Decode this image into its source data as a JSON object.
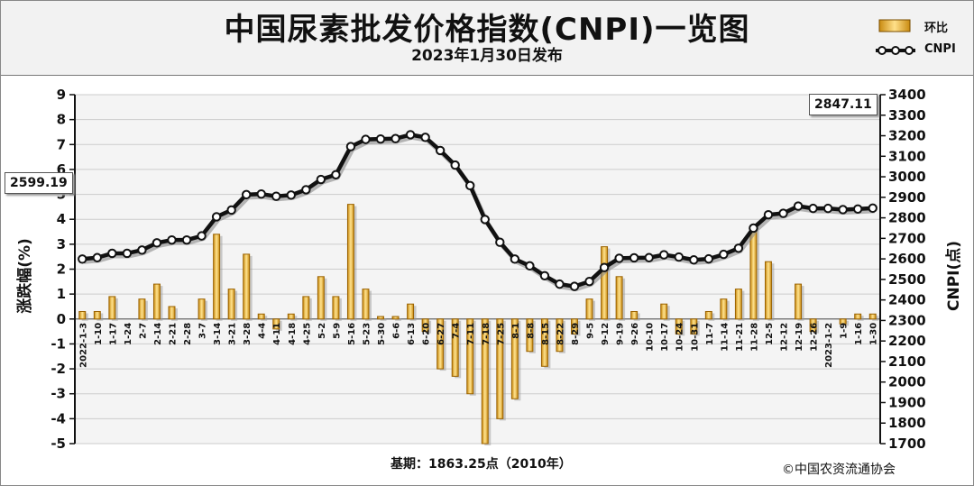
{
  "header": {
    "title": "中国尿素批发价格指数(CNPI)一览图",
    "subtitle": "2023年1月30日发布"
  },
  "footer": {
    "base": "基期：1863.25点（2010年）",
    "copyright": "©中国农资流通协会"
  },
  "colors": {
    "bar_fill": "#f5c242",
    "bar_edge": "#9a6200",
    "line": "#111111",
    "marker_fill": "#ffffff",
    "plot_bg": "#f4f4f4",
    "grid": "#cccccc"
  },
  "chart_data": {
    "type": "bar+line",
    "legend": {
      "position": "top-right",
      "bar_label": "环比",
      "line_label": "CNPI"
    },
    "left_axis": {
      "label": "涨跌幅(%)",
      "min": -5,
      "max": 9,
      "ticks": [
        -5,
        -4,
        -3,
        -2,
        -1,
        0,
        1,
        2,
        3,
        4,
        5,
        6,
        7,
        8,
        9
      ]
    },
    "right_axis": {
      "label": "CNPI(点)",
      "min": 1700,
      "max": 3400,
      "ticks": [
        1700,
        1800,
        1900,
        2000,
        2100,
        2200,
        2300,
        2400,
        2500,
        2600,
        2700,
        2800,
        2900,
        3000,
        3100,
        3200,
        3300,
        3400
      ]
    },
    "categories": [
      "2022-1-3",
      "1-10",
      "1-17",
      "1-24",
      "2-7",
      "2-14",
      "2-21",
      "2-28",
      "3-7",
      "3-14",
      "3-21",
      "3-28",
      "4-4",
      "4-11",
      "4-18",
      "4-25",
      "5-2",
      "5-9",
      "5-16",
      "5-23",
      "5-30",
      "6-6",
      "6-13",
      "6-20",
      "6-27",
      "7-4",
      "7-11",
      "7-18",
      "7-25",
      "8-1",
      "8-8",
      "8-15",
      "8-22",
      "8-29",
      "9-5",
      "9-12",
      "9-19",
      "9-26",
      "10-10",
      "10-17",
      "10-24",
      "10-31",
      "11-7",
      "11-14",
      "11-21",
      "11-28",
      "12-5",
      "12-12",
      "12-19",
      "12-26",
      "2023-1-2",
      "1-9",
      "1-16",
      "1-30"
    ],
    "series": [
      {
        "name": "环比",
        "type": "bar",
        "values": [
          0.3,
          0.3,
          0.9,
          0.0,
          0.8,
          1.4,
          0.5,
          0.0,
          0.8,
          3.4,
          1.2,
          2.6,
          0.2,
          -0.4,
          0.2,
          0.9,
          1.7,
          0.9,
          4.6,
          1.2,
          0.1,
          0.1,
          0.6,
          -0.5,
          -2.0,
          -2.3,
          -3.0,
          -5.0,
          -4.0,
          -3.2,
          -1.3,
          -1.9,
          -1.3,
          -0.6,
          0.8,
          2.9,
          1.7,
          0.3,
          0.0,
          0.6,
          -0.6,
          -0.6,
          0.3,
          0.8,
          1.2,
          3.6,
          2.3,
          0.0,
          1.4,
          -0.5,
          0.0,
          -0.2,
          0.2,
          0.2
        ]
      },
      {
        "name": "CNPI",
        "type": "line",
        "values": [
          2599.19,
          2606,
          2627,
          2627,
          2643,
          2678,
          2692,
          2692,
          2712,
          2805,
          2838,
          2913,
          2916,
          2905,
          2911,
          2937,
          2987,
          3010,
          3147,
          3182,
          3184,
          3186,
          3205,
          3192,
          3128,
          3057,
          2957,
          2792,
          2681,
          2599,
          2566,
          2518,
          2477,
          2466,
          2490,
          2558,
          2603,
          2605,
          2606,
          2620,
          2609,
          2595,
          2600,
          2622,
          2652,
          2750,
          2815,
          2822,
          2857,
          2846,
          2846,
          2840,
          2843,
          2847.11
        ]
      }
    ],
    "callouts": {
      "first": "2599.19",
      "last": "2847.11"
    }
  }
}
